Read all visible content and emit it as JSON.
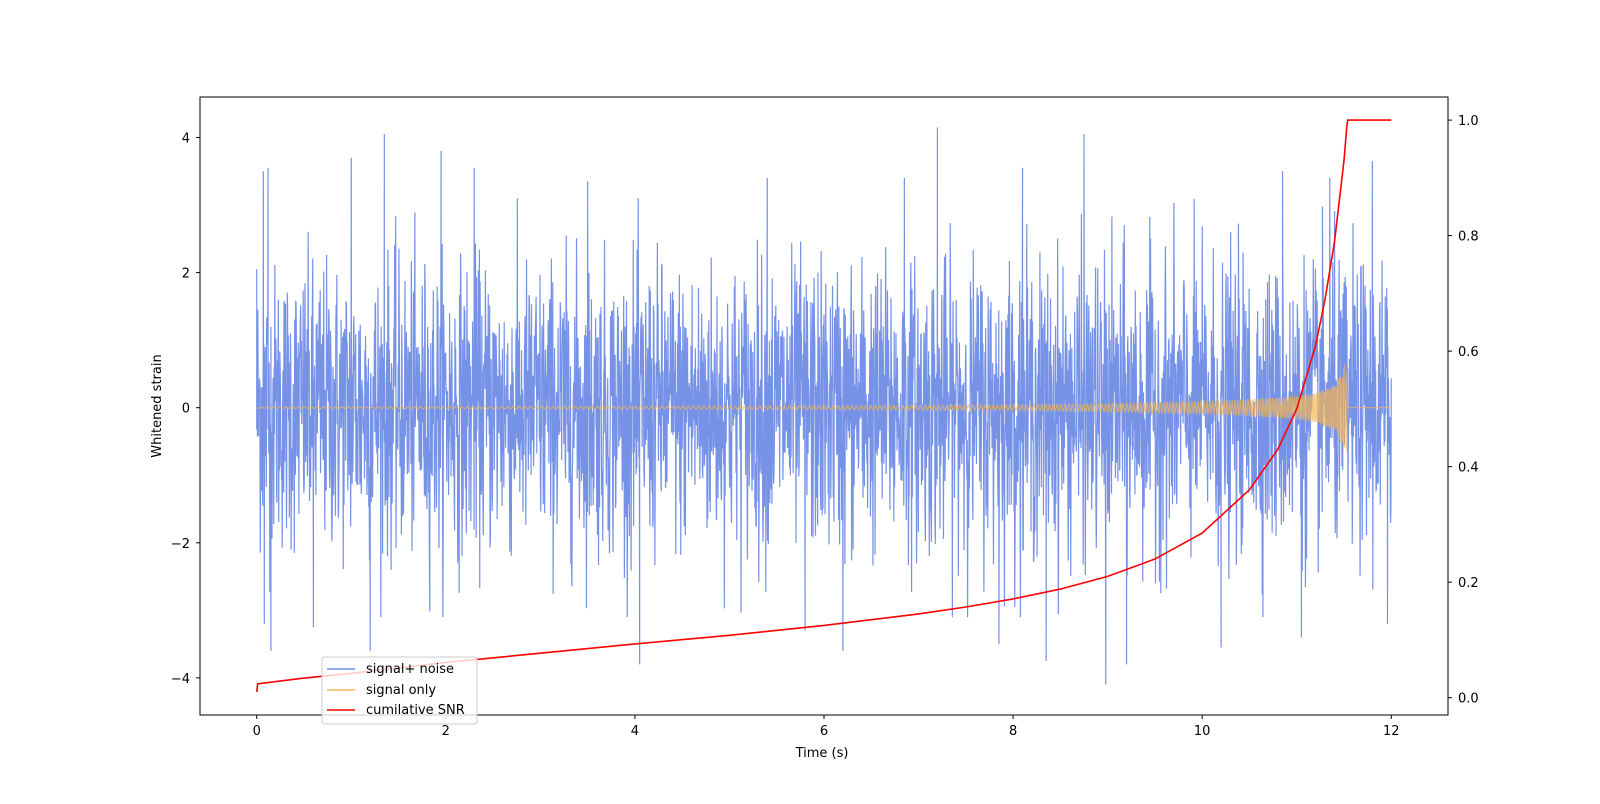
{
  "chart_data": {
    "type": "line",
    "xlabel": "Time (s)",
    "ylabel": "Whitened strain",
    "ylabel_right": "",
    "xlim": [
      -0.6,
      12.6
    ],
    "ylim": [
      -4.55,
      4.6
    ],
    "ylim_right": [
      -0.03,
      1.04
    ],
    "x_ticks": [
      0,
      2,
      4,
      6,
      8,
      10,
      12
    ],
    "y_ticks": [
      -4,
      -2,
      0,
      2,
      4
    ],
    "y_right_ticks": [
      "0.0",
      "0.2",
      "0.4",
      "0.6",
      "0.8",
      "1.0"
    ],
    "grid": false,
    "legend_position": "lower left",
    "colors": {
      "signal_noise": "#6f8ce6",
      "signal_only": "#f5b552",
      "cumulative_snr": "#ff0000"
    },
    "series": [
      {
        "name": "signal+ noise",
        "axis": "left",
        "style": "noise band",
        "duration": [
          0,
          12
        ],
        "typical_range": [
          -2.5,
          2.5
        ],
        "extremes": [
          {
            "x": 0.0,
            "y": 2.05
          },
          {
            "x": 0.07,
            "y": 3.5
          },
          {
            "x": 0.12,
            "y": 3.55
          },
          {
            "x": 0.08,
            "y": -3.2
          },
          {
            "x": 0.15,
            "y": -3.6
          },
          {
            "x": 0.6,
            "y": -3.25
          },
          {
            "x": 1.0,
            "y": 3.7
          },
          {
            "x": 1.2,
            "y": -3.6
          },
          {
            "x": 1.35,
            "y": 4.05
          },
          {
            "x": 1.95,
            "y": 3.8
          },
          {
            "x": 2.3,
            "y": 3.55
          },
          {
            "x": 3.5,
            "y": 3.35
          },
          {
            "x": 4.05,
            "y": -3.8
          },
          {
            "x": 5.4,
            "y": 3.4
          },
          {
            "x": 5.8,
            "y": -3.3
          },
          {
            "x": 6.2,
            "y": -3.6
          },
          {
            "x": 6.85,
            "y": 3.4
          },
          {
            "x": 7.2,
            "y": 4.15
          },
          {
            "x": 7.85,
            "y": -3.5
          },
          {
            "x": 8.1,
            "y": 3.55
          },
          {
            "x": 8.35,
            "y": -3.75
          },
          {
            "x": 8.75,
            "y": 4.05
          },
          {
            "x": 8.98,
            "y": -4.1
          },
          {
            "x": 9.2,
            "y": -3.8
          },
          {
            "x": 10.2,
            "y": -3.55
          },
          {
            "x": 10.85,
            "y": 3.5
          },
          {
            "x": 11.05,
            "y": -3.4
          },
          {
            "x": 11.35,
            "y": 3.4
          },
          {
            "x": 11.8,
            "y": 3.65
          },
          {
            "x": 11.96,
            "y": -3.2
          }
        ]
      },
      {
        "name": "signal only",
        "axis": "left",
        "style": "chirp",
        "amplitude_envelope": {
          "x": [
            0,
            4,
            8,
            9,
            10,
            10.5,
            11,
            11.2,
            11.4,
            11.5,
            11.53,
            11.54,
            12
          ],
          "y": [
            0.01,
            0.02,
            0.04,
            0.06,
            0.09,
            0.12,
            0.17,
            0.22,
            0.34,
            0.6,
            0.75,
            0,
            0
          ]
        }
      },
      {
        "name": "cumilative SNR",
        "axis": "right",
        "x": [
          0,
          0.01,
          0.5,
          1,
          2,
          3,
          4,
          5,
          6,
          7,
          7.5,
          8,
          8.5,
          9,
          9.5,
          10,
          10.5,
          10.8,
          11,
          11.2,
          11.3,
          11.4,
          11.45,
          11.5,
          11.53,
          11.54,
          12
        ],
        "values": [
          0.01,
          0.024,
          0.034,
          0.042,
          0.061,
          0.077,
          0.093,
          0.108,
          0.125,
          0.145,
          0.157,
          0.171,
          0.188,
          0.21,
          0.24,
          0.285,
          0.36,
          0.43,
          0.5,
          0.61,
          0.69,
          0.79,
          0.86,
          0.93,
          0.99,
          1.0,
          1.0
        ]
      }
    ]
  }
}
